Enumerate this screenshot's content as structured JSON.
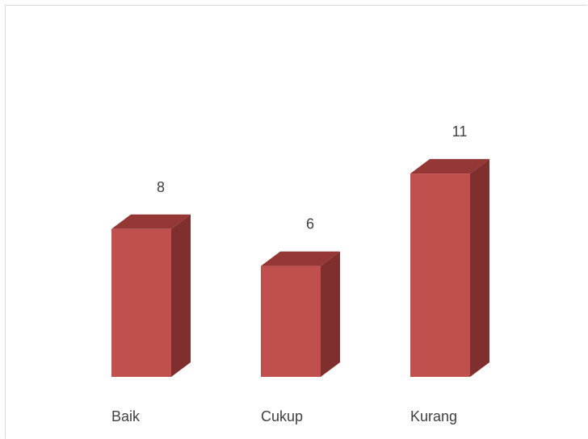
{
  "chart_data": {
    "type": "bar",
    "style": "3d-column",
    "categories": [
      "Baik",
      "Cukup",
      "Kurang"
    ],
    "values": [
      8,
      6,
      11
    ],
    "data_labels": [
      "8",
      "6",
      "11"
    ],
    "title": "",
    "xlabel": "",
    "ylabel": "",
    "ylim": [
      0,
      11
    ],
    "grid": false,
    "legend": "none",
    "colors": {
      "front": "#c0504d",
      "side": "#7f302e",
      "top": "#953735"
    }
  }
}
